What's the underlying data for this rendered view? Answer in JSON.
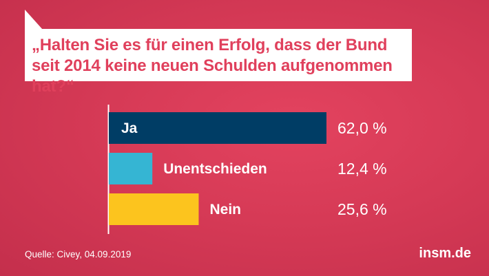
{
  "question": "„Halten Sie es für einen Erfolg, dass der Bund seit 2014 keine neuen Schulden aufgenommen hat?“",
  "chart_data": {
    "type": "bar",
    "orientation": "horizontal",
    "title": "„Halten Sie es für einen Erfolg, dass der Bund seit 2014 keine neuen Schulden aufgenommen hat?“",
    "categories": [
      "Ja",
      "Unentschieden",
      "Nein"
    ],
    "values": [
      62.0,
      12.4,
      25.6
    ],
    "value_labels": [
      "62,0 %",
      "12,4 %",
      "25,6 %"
    ],
    "colors": [
      "#003d65",
      "#35b5d3",
      "#fcc41e"
    ],
    "label_colors": [
      "#ffffff",
      "#ffffff",
      "#ffffff"
    ],
    "unit": "%",
    "xlim": [
      0,
      62.0
    ]
  },
  "footer": {
    "source": "Quelle: Civey, 04.09.2019",
    "brand": "insm.de"
  }
}
